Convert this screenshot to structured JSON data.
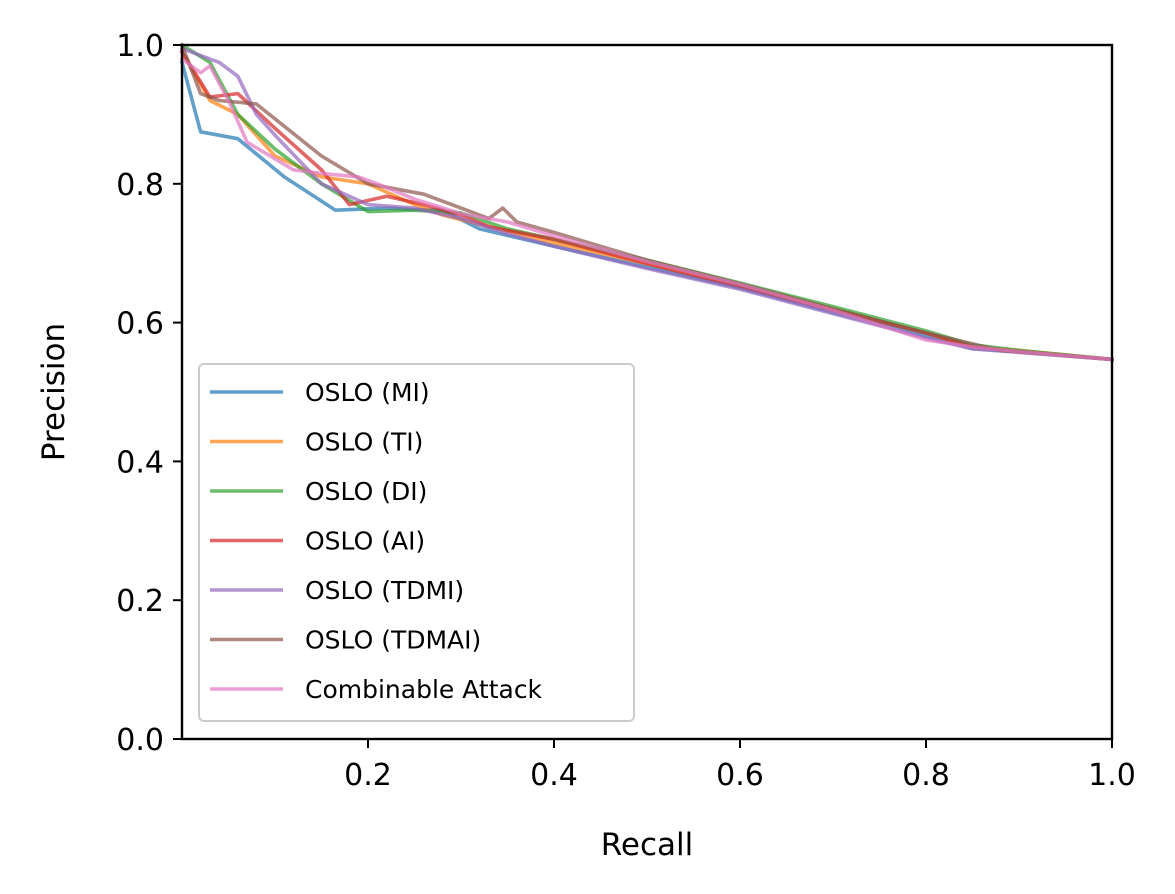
{
  "chart_data": {
    "type": "line",
    "title": "",
    "xlabel": "Recall",
    "ylabel": "Precision",
    "xlim": [
      0.0,
      1.0
    ],
    "ylim": [
      0.0,
      1.0
    ],
    "xticks": [
      0.2,
      0.4,
      0.6,
      0.8,
      1.0
    ],
    "xtick_labels": [
      "0.2",
      "0.4",
      "0.6",
      "0.8",
      "1.0"
    ],
    "yticks": [
      0.0,
      0.2,
      0.4,
      0.6,
      0.8,
      1.0
    ],
    "ytick_labels": [
      "0.0",
      "0.2",
      "0.4",
      "0.6",
      "0.8",
      "1.0"
    ],
    "grid": false,
    "legend_position": "lower-left",
    "series": [
      {
        "name": "OSLO (MI)",
        "color": "#1f77b4",
        "x": [
          0.0,
          0.02,
          0.06,
          0.11,
          0.165,
          0.22,
          0.25,
          0.28,
          0.32,
          0.4,
          0.5,
          0.6,
          0.7,
          0.8,
          0.85,
          0.9,
          1.0
        ],
        "y": [
          0.975,
          0.875,
          0.865,
          0.81,
          0.762,
          0.765,
          0.763,
          0.762,
          0.735,
          0.71,
          0.68,
          0.65,
          0.615,
          0.58,
          0.563,
          0.558,
          0.547
        ]
      },
      {
        "name": "OSLO (TI)",
        "color": "#ff7f0e",
        "x": [
          0.0,
          0.03,
          0.06,
          0.1,
          0.15,
          0.2,
          0.25,
          0.28,
          0.32,
          0.4,
          0.5,
          0.6,
          0.7,
          0.8,
          0.85,
          0.9,
          1.0
        ],
        "y": [
          0.99,
          0.92,
          0.9,
          0.84,
          0.81,
          0.8,
          0.77,
          0.755,
          0.742,
          0.715,
          0.685,
          0.655,
          0.62,
          0.585,
          0.565,
          0.56,
          0.547
        ]
      },
      {
        "name": "OSLO (DI)",
        "color": "#2ca02c",
        "x": [
          0.0,
          0.03,
          0.06,
          0.1,
          0.15,
          0.2,
          0.25,
          0.3,
          0.35,
          0.4,
          0.5,
          0.6,
          0.7,
          0.8,
          0.85,
          0.9,
          1.0
        ],
        "y": [
          1.0,
          0.975,
          0.9,
          0.85,
          0.8,
          0.76,
          0.762,
          0.758,
          0.735,
          0.72,
          0.69,
          0.657,
          0.623,
          0.588,
          0.568,
          0.56,
          0.547
        ]
      },
      {
        "name": "OSLO (AI)",
        "color": "#d62728",
        "x": [
          0.0,
          0.03,
          0.06,
          0.1,
          0.15,
          0.18,
          0.22,
          0.26,
          0.3,
          0.33,
          0.4,
          0.5,
          0.6,
          0.7,
          0.8,
          0.85,
          0.9,
          1.0
        ],
        "y": [
          0.99,
          0.925,
          0.93,
          0.88,
          0.82,
          0.77,
          0.782,
          0.77,
          0.755,
          0.738,
          0.72,
          0.685,
          0.652,
          0.618,
          0.585,
          0.565,
          0.558,
          0.547
        ]
      },
      {
        "name": "OSLO (TDMI)",
        "color": "#9467bd",
        "x": [
          0.0,
          0.04,
          0.06,
          0.08,
          0.1,
          0.15,
          0.2,
          0.25,
          0.3,
          0.35,
          0.4,
          0.5,
          0.6,
          0.7,
          0.8,
          0.85,
          0.9,
          1.0
        ],
        "y": [
          0.995,
          0.975,
          0.955,
          0.9,
          0.87,
          0.8,
          0.77,
          0.765,
          0.75,
          0.728,
          0.71,
          0.678,
          0.648,
          0.613,
          0.578,
          0.562,
          0.557,
          0.547
        ]
      },
      {
        "name": "OSLO (TDMAI)",
        "color": "#8c564b",
        "x": [
          0.0,
          0.02,
          0.04,
          0.08,
          0.15,
          0.2,
          0.26,
          0.3,
          0.33,
          0.345,
          0.36,
          0.4,
          0.5,
          0.6,
          0.7,
          0.8,
          0.88,
          1.0
        ],
        "y": [
          1.0,
          0.93,
          0.92,
          0.915,
          0.84,
          0.8,
          0.785,
          0.765,
          0.75,
          0.765,
          0.745,
          0.73,
          0.69,
          0.656,
          0.62,
          0.585,
          0.56,
          0.547
        ]
      },
      {
        "name": "Combinable Attack",
        "color": "#e377c2",
        "x": [
          0.0,
          0.02,
          0.03,
          0.05,
          0.07,
          0.12,
          0.15,
          0.19,
          0.21,
          0.25,
          0.3,
          0.35,
          0.4,
          0.5,
          0.6,
          0.7,
          0.8,
          0.85,
          0.9,
          1.0
        ],
        "y": [
          0.98,
          0.96,
          0.97,
          0.92,
          0.86,
          0.82,
          0.815,
          0.81,
          0.8,
          0.778,
          0.757,
          0.745,
          0.725,
          0.688,
          0.655,
          0.618,
          0.575,
          0.565,
          0.558,
          0.547
        ]
      }
    ]
  }
}
